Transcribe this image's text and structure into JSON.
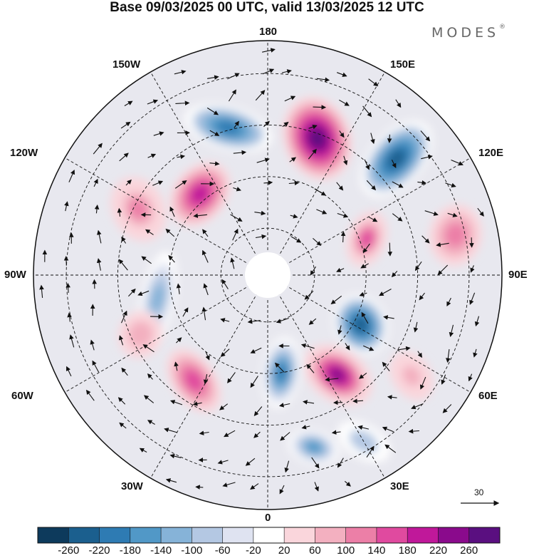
{
  "title": "Base 09/03/2025 00 UTC, valid 13/03/2025 12 UTC",
  "brand": "MODES",
  "brand_mark": "®",
  "longitude_labels": {
    "top": "180",
    "bottom": "0",
    "left": "90W",
    "right": "90E",
    "upper_left_1": "150W",
    "upper_left_2": "120W",
    "lower_left_1": "60W",
    "lower_left_2": "30W",
    "upper_right_1": "150E",
    "upper_right_2": "120E",
    "lower_right_1": "60E",
    "lower_right_2": "30E"
  },
  "reference_vector_label": "30",
  "colorbar": {
    "colors": [
      "#0d3a5c",
      "#1b5f8e",
      "#2e7bb3",
      "#5198c7",
      "#86b3d8",
      "#b4c8e3",
      "#dfe3f1",
      "#ffffff",
      "#fad6dc",
      "#f3b0c0",
      "#ec7fa7",
      "#e04a9f",
      "#c0189a",
      "#8a0a8c",
      "#5a0f80"
    ],
    "ticks": [
      "-260",
      "-220",
      "-180",
      "-140",
      "-100",
      "-60",
      "-20",
      "20",
      "60",
      "100",
      "140",
      "180",
      "220",
      "260"
    ]
  },
  "anomalies": [
    {
      "name": "pink-high-north-pacific",
      "value": 260,
      "angle": 200,
      "radius": 0.62,
      "rx": 0.13,
      "ry": 0.17
    },
    {
      "name": "blue-low-gulf-alaska",
      "value": -240,
      "angle": 228,
      "radius": 0.74,
      "rx": 0.18,
      "ry": 0.1
    },
    {
      "name": "blue-low-bering",
      "value": -200,
      "angle": 165,
      "radius": 0.65,
      "rx": 0.18,
      "ry": 0.08
    },
    {
      "name": "pink-high-east-siberia",
      "value": 180,
      "angle": 140,
      "radius": 0.45,
      "rx": 0.1,
      "ry": 0.14
    },
    {
      "name": "pink-high-east-asia",
      "value": 130,
      "angle": 117,
      "radius": 0.62,
      "rx": 0.13,
      "ry": 0.1
    },
    {
      "name": "blue-low-siberia",
      "value": -130,
      "angle": 78,
      "radius": 0.48,
      "rx": 0.19,
      "ry": 0.06
    },
    {
      "name": "pink-high-canada",
      "value": 170,
      "angle": 250,
      "radius": 0.45,
      "rx": 0.11,
      "ry": 0.07
    },
    {
      "name": "pink-high-west-us",
      "value": 110,
      "angle": 258,
      "radius": 0.82,
      "rx": 0.12,
      "ry": 0.1
    },
    {
      "name": "blue-low-labrador",
      "value": -240,
      "angle": 298,
      "radius": 0.45,
      "rx": 0.12,
      "ry": 0.1
    },
    {
      "name": "pink-high-north-atlantic",
      "value": 250,
      "angle": 325,
      "radius": 0.52,
      "rx": 0.15,
      "ry": 0.1
    },
    {
      "name": "blue-low-greenland-sea",
      "value": -220,
      "angle": 352,
      "radius": 0.42,
      "rx": 0.07,
      "ry": 0.14
    },
    {
      "name": "blue-low-iberia",
      "value": -170,
      "angle": 345,
      "radius": 0.76,
      "rx": 0.1,
      "ry": 0.06
    },
    {
      "name": "pink-high-east-europe",
      "value": 150,
      "angle": 35,
      "radius": 0.55,
      "rx": 0.08,
      "ry": 0.14
    },
    {
      "name": "pink-high-central-asia",
      "value": 80,
      "angle": 65,
      "radius": 0.6,
      "rx": 0.09,
      "ry": 0.08
    },
    {
      "name": "blue-low-east-atlantic",
      "value": -80,
      "angle": 330,
      "radius": 0.82,
      "rx": 0.11,
      "ry": 0.06
    },
    {
      "name": "pink-high-mid-atlantic",
      "value": 90,
      "angle": 305,
      "radius": 0.75,
      "rx": 0.1,
      "ry": 0.07
    }
  ]
}
